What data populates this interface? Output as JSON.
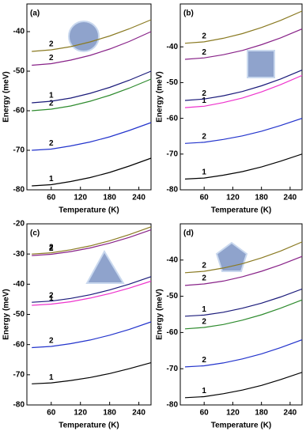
{
  "chart_data": [
    {
      "type": "line",
      "title": "(a)",
      "xlabel": "Temperature (K)",
      "ylabel": "Energy (meV)",
      "x": [
        20,
        60,
        100,
        140,
        180,
        220,
        265
      ],
      "xlim": [
        10,
        265
      ],
      "ylim": [
        -80,
        -33
      ],
      "xticks": [
        60,
        120,
        180,
        240
      ],
      "yticks": [
        -80,
        -70,
        -60,
        -50,
        -40
      ],
      "series": [
        {
          "name": "1",
          "color": "#000000",
          "values": [
            -79,
            -78.7,
            -77.9,
            -76.9,
            -75.6,
            -74,
            -72
          ]
        },
        {
          "name": "2",
          "color": "#2233cc",
          "values": [
            -70,
            -69.7,
            -68.9,
            -67.9,
            -66.6,
            -65,
            -63
          ]
        },
        {
          "name": "2",
          "color": "#2e8b2e",
          "values": [
            -60,
            -59.6,
            -58.8,
            -57.6,
            -56.1,
            -54.3,
            -52
          ]
        },
        {
          "name": "1",
          "color": "#1a1a7a",
          "values": [
            -58,
            -57.6,
            -56.8,
            -55.6,
            -54.1,
            -52.3,
            -50
          ]
        },
        {
          "name": "2",
          "color": "#882288",
          "values": [
            -48.5,
            -48.1,
            -47.2,
            -46,
            -44.4,
            -42.5,
            -40
          ]
        },
        {
          "name": "2",
          "color": "#8a7a22",
          "values": [
            -45,
            -44.6,
            -43.8,
            -42.6,
            -41.1,
            -39.3,
            -37
          ]
        }
      ]
    },
    {
      "type": "line",
      "title": "(b)",
      "xlabel": "Temperature (K)",
      "ylabel": "Energy (meV)",
      "x": [
        20,
        60,
        100,
        140,
        180,
        220,
        265
      ],
      "xlim": [
        10,
        265
      ],
      "ylim": [
        -80,
        -28
      ],
      "xticks": [
        60,
        120,
        180,
        240
      ],
      "yticks": [
        -80,
        -70,
        -60,
        -50,
        -40
      ],
      "series": [
        {
          "name": "1",
          "color": "#000000",
          "values": [
            -77,
            -76.7,
            -75.9,
            -74.9,
            -73.6,
            -72,
            -70
          ]
        },
        {
          "name": "2",
          "color": "#2233cc",
          "values": [
            -67,
            -66.7,
            -65.9,
            -64.9,
            -63.6,
            -62,
            -60
          ]
        },
        {
          "name": "1",
          "color": "#ee33cc",
          "values": [
            -57,
            -56.6,
            -55.6,
            -54.3,
            -52.6,
            -50.6,
            -48
          ]
        },
        {
          "name": "2",
          "color": "#1a1a7a",
          "values": [
            -55,
            -54.6,
            -53.7,
            -52.5,
            -50.9,
            -49,
            -46.5
          ]
        },
        {
          "name": "2",
          "color": "#882288",
          "values": [
            -43.5,
            -43.1,
            -42.2,
            -41,
            -39.4,
            -37.5,
            -35
          ]
        },
        {
          "name": "2",
          "color": "#8a7a22",
          "values": [
            -39,
            -38.6,
            -37.6,
            -36.3,
            -34.6,
            -32.6,
            -30
          ]
        }
      ]
    },
    {
      "type": "line",
      "title": "(c)",
      "xlabel": "Temperature (K)",
      "ylabel": "Energy (meV)",
      "x": [
        20,
        60,
        100,
        140,
        180,
        220,
        265
      ],
      "xlim": [
        10,
        265
      ],
      "ylim": [
        -80,
        -20
      ],
      "xticks": [
        60,
        120,
        180,
        240
      ],
      "yticks": [
        -80,
        -70,
        -60,
        -50,
        -40,
        -30,
        -20
      ],
      "series": [
        {
          "name": "1",
          "color": "#000000",
          "values": [
            -73,
            -72.7,
            -71.9,
            -70.9,
            -69.6,
            -68,
            -66
          ]
        },
        {
          "name": "2",
          "color": "#2233cc",
          "values": [
            -61,
            -60.6,
            -59.7,
            -58.5,
            -56.9,
            -55,
            -52.5
          ]
        },
        {
          "name": "1",
          "color": "#ee33cc",
          "values": [
            -47,
            -46.6,
            -45.8,
            -44.6,
            -43.1,
            -41.3,
            -39
          ]
        },
        {
          "name": "2",
          "color": "#1a1a7a",
          "values": [
            -46,
            -45.6,
            -44.7,
            -43.5,
            -41.9,
            -40,
            -37.5
          ]
        },
        {
          "name": "2",
          "color": "#882288",
          "values": [
            -30.5,
            -30.1,
            -29.2,
            -28,
            -26.4,
            -24.5,
            -22
          ]
        },
        {
          "name": "2",
          "color": "#8a7a22",
          "values": [
            -30,
            -29.6,
            -28.6,
            -27.3,
            -25.6,
            -23.6,
            -21
          ]
        }
      ]
    },
    {
      "type": "line",
      "title": "(d)",
      "xlabel": "Temperature (K)",
      "ylabel": "Energy (meV)",
      "x": [
        20,
        60,
        100,
        140,
        180,
        220,
        265
      ],
      "xlim": [
        10,
        265
      ],
      "ylim": [
        -80,
        -30
      ],
      "xticks": [
        60,
        120,
        180,
        240
      ],
      "yticks": [
        -80,
        -70,
        -60,
        -50,
        -40
      ],
      "series": [
        {
          "name": "1",
          "color": "#000000",
          "values": [
            -78,
            -77.7,
            -76.9,
            -75.9,
            -74.6,
            -73,
            -71
          ]
        },
        {
          "name": "2",
          "color": "#2233cc",
          "values": [
            -69.5,
            -69.2,
            -68.4,
            -67.3,
            -65.9,
            -64.2,
            -62
          ]
        },
        {
          "name": "2",
          "color": "#2e8b2e",
          "values": [
            -59,
            -58.6,
            -57.8,
            -56.6,
            -55.1,
            -53.3,
            -51
          ]
        },
        {
          "name": "1",
          "color": "#1a1a7a",
          "values": [
            -55.5,
            -55.2,
            -54.4,
            -53.3,
            -51.9,
            -50.2,
            -48
          ]
        },
        {
          "name": "2",
          "color": "#882288",
          "values": [
            -47,
            -46.6,
            -45.8,
            -44.6,
            -43.1,
            -41.3,
            -39
          ]
        },
        {
          "name": "2",
          "color": "#8a7a22",
          "values": [
            -43.5,
            -43.1,
            -42.2,
            -41,
            -39.4,
            -37.5,
            -35
          ]
        }
      ]
    }
  ]
}
